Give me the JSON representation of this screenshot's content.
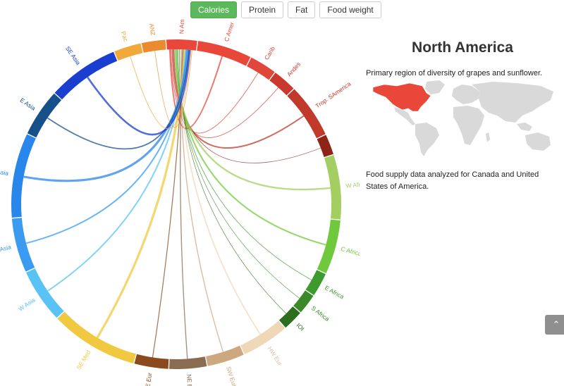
{
  "tabs": [
    {
      "label": "Calories",
      "active": true
    },
    {
      "label": "Protein",
      "active": false
    },
    {
      "label": "Fat",
      "active": false
    },
    {
      "label": "Food weight",
      "active": false
    }
  ],
  "chord": {
    "selected": "N Amer",
    "regions": [
      {
        "label": "N Amer",
        "color": "#e8473a",
        "size": 9
      },
      {
        "label": "C Amer",
        "color": "#e8473a",
        "size": 16
      },
      {
        "label": "Carib",
        "color": "#e2463b",
        "size": 8
      },
      {
        "label": "Andes",
        "color": "#c9392e",
        "size": 7
      },
      {
        "label": "Trop. SAmerica",
        "color": "#c0392b",
        "size": 16
      },
      {
        "label": "",
        "color": "#8e2418",
        "size": 6
      },
      {
        "label": "W Africa",
        "color": "#a3cf62",
        "size": 19
      },
      {
        "label": "C Africa",
        "color": "#70c93c",
        "size": 16
      },
      {
        "label": "E Africa",
        "color": "#3d9a2e",
        "size": 7
      },
      {
        "label": "S Africa",
        "color": "#3a8a2a",
        "size": 6
      },
      {
        "label": "IOI",
        "color": "#2d6e1e",
        "size": 6
      },
      {
        "label": "HW Eur",
        "color": "#efd8b8",
        "size": 14
      },
      {
        "label": "SW Eur",
        "color": "#cda77d",
        "size": 11
      },
      {
        "label": "NE Eur",
        "color": "#8a6c50",
        "size": 11
      },
      {
        "label": "SE Eur",
        "color": "#8a4a1e",
        "size": 10
      },
      {
        "label": "SE Med",
        "color": "#f0c940",
        "size": 26
      },
      {
        "label": "W Asia",
        "color": "#5ac3f5",
        "size": 16
      },
      {
        "label": "C Asia",
        "color": "#3a9bf0",
        "size": 16
      },
      {
        "label": "S Asia",
        "color": "#2986ea",
        "size": 25
      },
      {
        "label": "E Asia",
        "color": "#15508a",
        "size": 14
      },
      {
        "label": "SE Asia",
        "color": "#1a3ed0",
        "size": 21
      },
      {
        "label": "Pac",
        "color": "#f0a93a",
        "size": 8
      },
      {
        "label": "ANZ",
        "color": "#ec8a2e",
        "size": 7
      }
    ]
  },
  "info": {
    "title": "North America",
    "region_description": "Primary region of diversity of grapes and sunflower.",
    "food_description": "Food supply data analyzed for Canada and United States of America.",
    "map_highlight_color": "#e8473a",
    "map_land_color": "#d9d9d9"
  },
  "scroll_top_icon": "chevron-up-icon",
  "scroll_top_glyph": "⌃"
}
